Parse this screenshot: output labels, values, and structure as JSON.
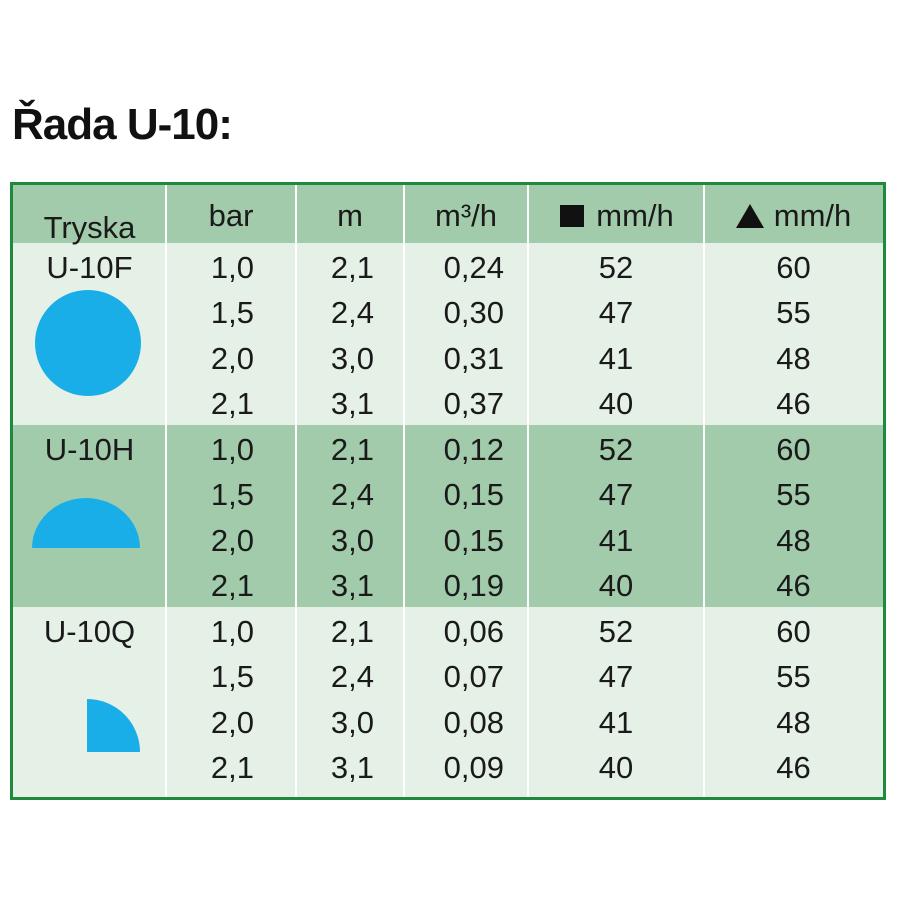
{
  "title": "Řada U-10:",
  "header": [
    "Tryska",
    "bar",
    "m",
    "m³/h",
    "mm/h",
    "mm/h"
  ],
  "groups": [
    {
      "name": "U-10F",
      "rows": [
        [
          "1,0",
          "2,1",
          "0,24",
          "52",
          "60"
        ],
        [
          "1,5",
          "2,4",
          "0,30",
          "47",
          "55"
        ],
        [
          "2,0",
          "3,0",
          "0,31",
          "41",
          "48"
        ],
        [
          "2,1",
          "3,1",
          "0,37",
          "40",
          "46"
        ]
      ]
    },
    {
      "name": "U-10H",
      "rows": [
        [
          "1,0",
          "2,1",
          "0,12",
          "52",
          "60"
        ],
        [
          "1,5",
          "2,4",
          "0,15",
          "47",
          "55"
        ],
        [
          "2,0",
          "3,0",
          "0,15",
          "41",
          "48"
        ],
        [
          "2,1",
          "3,1",
          "0,19",
          "40",
          "46"
        ]
      ]
    },
    {
      "name": "U-10Q",
      "rows": [
        [
          "1,0",
          "2,1",
          "0,06",
          "52",
          "60"
        ],
        [
          "1,5",
          "2,4",
          "0,07",
          "47",
          "55"
        ],
        [
          "2,0",
          "3,0",
          "0,08",
          "41",
          "48"
        ],
        [
          "2,1",
          "3,1",
          "0,09",
          "40",
          "46"
        ]
      ]
    }
  ]
}
